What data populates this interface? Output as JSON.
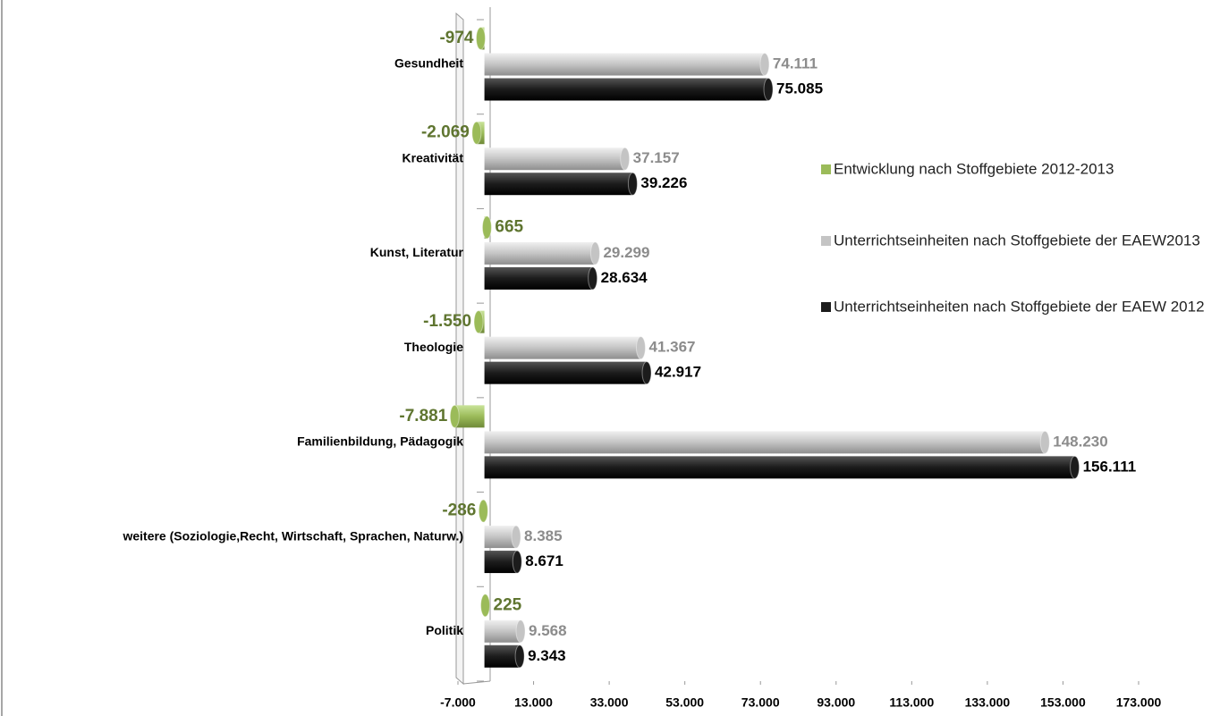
{
  "chart_data": {
    "type": "bar",
    "orientation": "horizontal",
    "categories": [
      "Gesundheit",
      "Kreativität",
      "Kunst, Literatur",
      "Theologie",
      "Familienbildung, Pädagogik",
      "weitere (Soziologie,Recht, Wirtschaft, Sprachen, Naturw.)",
      "Politik"
    ],
    "series": [
      {
        "name": "Entwicklung nach Stoffgebiete 2012-2013",
        "color": "#9bbb59",
        "label_color": "#5f7530",
        "values": [
          -974,
          -2069,
          665,
          -1550,
          -7881,
          -286,
          225
        ],
        "value_labels": [
          "-974",
          "-2.069",
          "665",
          "-1.550",
          "-7.881",
          "-286",
          "225"
        ]
      },
      {
        "name": "Unterrichtseinheiten nach Stoffgebiete der EAEW2013",
        "color": "#c4c4c4",
        "label_color": "#8c8c8c",
        "values": [
          74111,
          37157,
          29299,
          41367,
          148230,
          8385,
          9568
        ],
        "value_labels": [
          "74.111",
          "37.157",
          "29.299",
          "41.367",
          "148.230",
          "8.385",
          "9.568"
        ]
      },
      {
        "name": "Unterrichtseinheiten nach Stoffgebiete der EAEW 2012",
        "color": "#1c1c1c",
        "label_color": "#000000",
        "values": [
          75085,
          39226,
          28634,
          42917,
          156111,
          8671,
          9343
        ],
        "value_labels": [
          "75.085",
          "39.226",
          "28.634",
          "42.917",
          "156.111",
          "8.671",
          "9.343"
        ]
      }
    ],
    "xlim": [
      -7000,
      173000
    ],
    "xticks": [
      {
        "value": -7000,
        "label": "-7.000"
      },
      {
        "value": 13000,
        "label": "13.000"
      },
      {
        "value": 33000,
        "label": "33.000"
      },
      {
        "value": 53000,
        "label": "53.000"
      },
      {
        "value": 73000,
        "label": "73.000"
      },
      {
        "value": 93000,
        "label": "93.000"
      },
      {
        "value": 113000,
        "label": "113.000"
      },
      {
        "value": 133000,
        "label": "133.000"
      },
      {
        "value": 153000,
        "label": "153.000"
      },
      {
        "value": 173000,
        "label": "173.000"
      }
    ],
    "legend": "right"
  }
}
